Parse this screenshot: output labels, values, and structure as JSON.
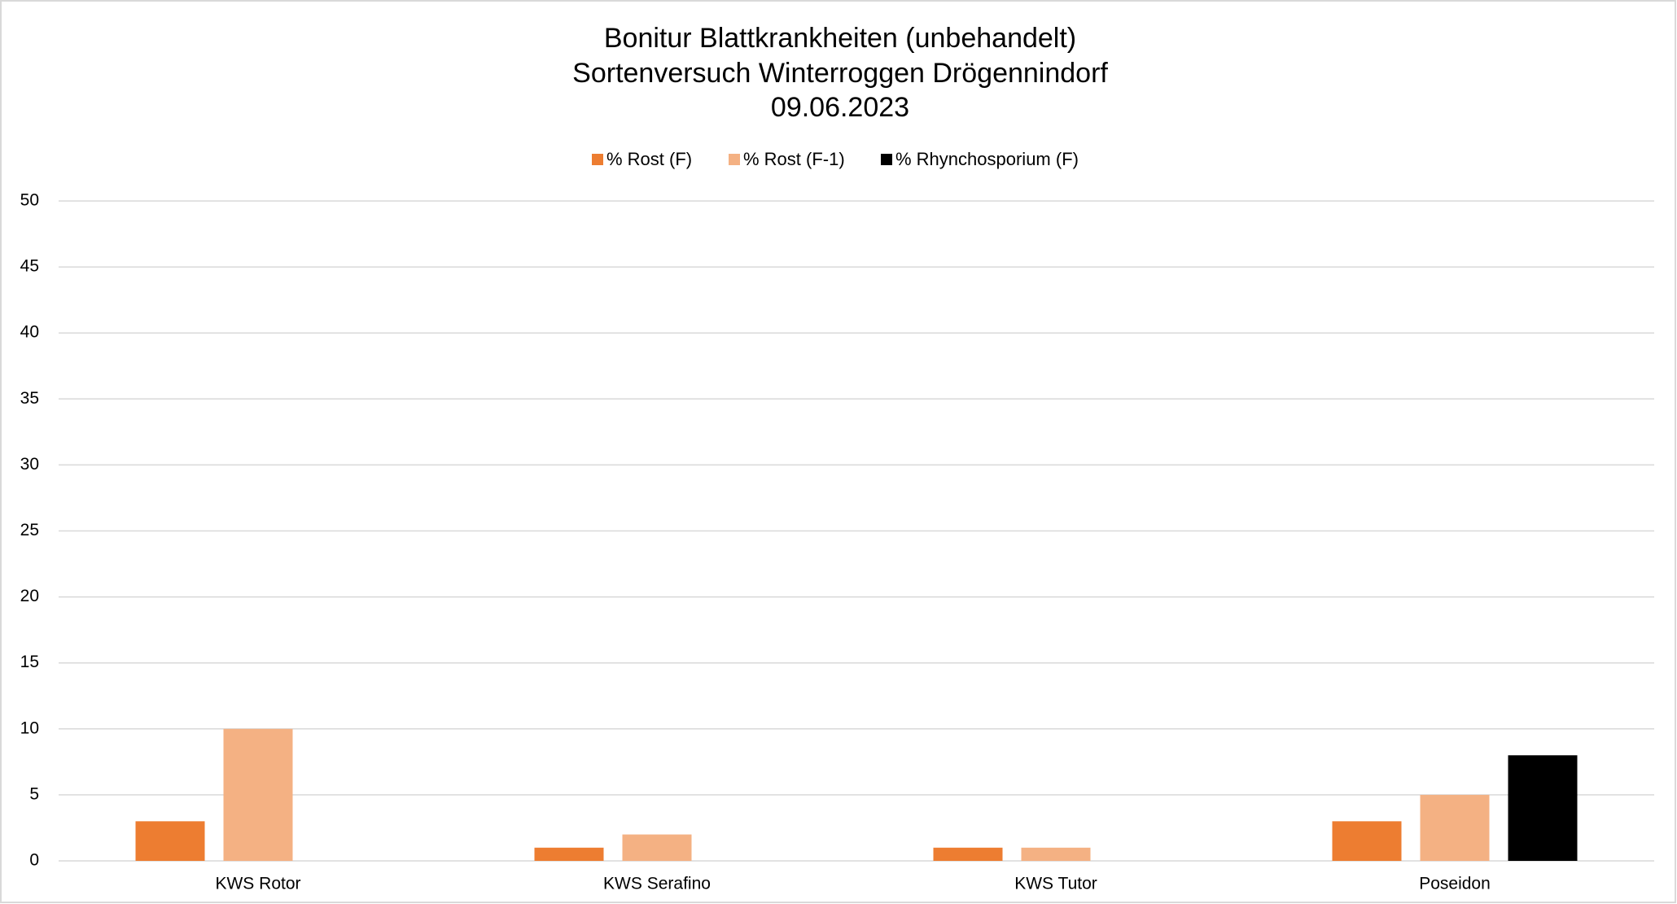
{
  "chart_data": {
    "type": "bar",
    "title": "Bonitur Blattkrankheiten (unbehandelt)",
    "subtitle": [
      "Sortenversuch Winterroggen Drögennindorf",
      "09.06.2023"
    ],
    "categories": [
      "KWS Rotor",
      "KWS Serafino",
      "KWS Tutor",
      "Poseidon"
    ],
    "series": [
      {
        "name": "% Rost (F)",
        "color": "#ED7D31",
        "values": [
          3,
          1,
          1,
          3
        ]
      },
      {
        "name": "% Rost (F-1)",
        "color": "#F4B183",
        "values": [
          10,
          2,
          1,
          5
        ]
      },
      {
        "name": "% Rhynchosporium (F)",
        "color": "#000000",
        "values": [
          0,
          0,
          0,
          8
        ]
      }
    ],
    "ylim": [
      0,
      50
    ],
    "yticks": [
      0,
      5,
      10,
      15,
      20,
      25,
      30,
      35,
      40,
      45,
      50
    ],
    "grid": true,
    "legend": "top"
  }
}
